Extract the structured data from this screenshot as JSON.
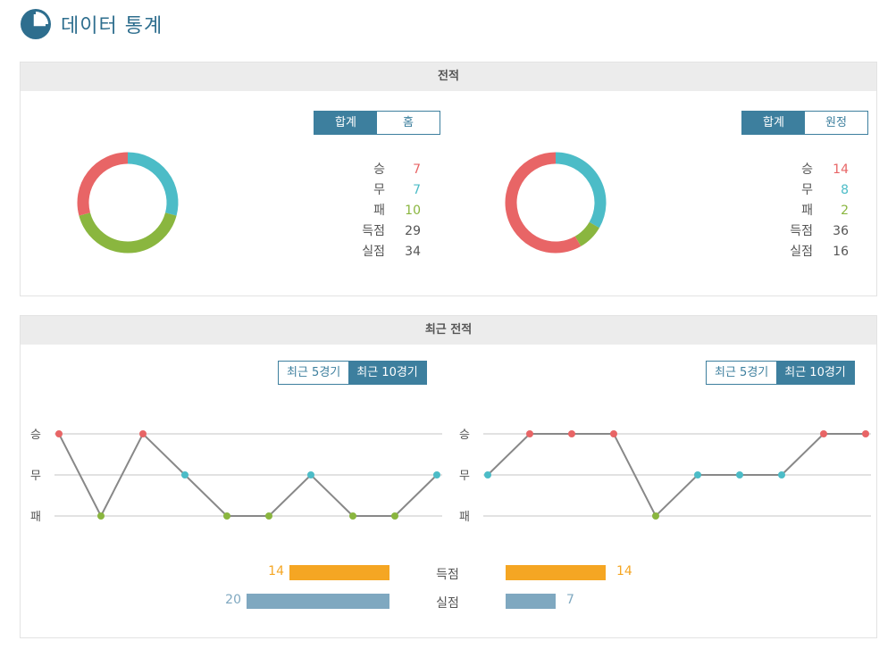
{
  "page": {
    "title": "데이터 통계"
  },
  "colors": {
    "win": "#e86566",
    "draw": "#4cbcc7",
    "loss": "#8ab63f",
    "accent": "#3d7f9e",
    "scored": "#f5a623",
    "conceded": "#7fa8c0"
  },
  "record": {
    "title": "전적",
    "left": {
      "tabs": [
        {
          "label": "합계",
          "active": true
        },
        {
          "label": "홈",
          "active": false
        }
      ],
      "stats": [
        {
          "label": "승",
          "value": "7",
          "color": "#e86566"
        },
        {
          "label": "무",
          "value": "7",
          "color": "#4cbcc7"
        },
        {
          "label": "패",
          "value": "10",
          "color": "#8ab63f"
        },
        {
          "label": "득점",
          "value": "29",
          "color": "#555555"
        },
        {
          "label": "실점",
          "value": "34",
          "color": "#555555"
        }
      ],
      "donut": {
        "win": 7,
        "draw": 7,
        "loss": 10
      }
    },
    "right": {
      "tabs": [
        {
          "label": "합계",
          "active": true
        },
        {
          "label": "원정",
          "active": false
        }
      ],
      "stats": [
        {
          "label": "승",
          "value": "14",
          "color": "#e86566"
        },
        {
          "label": "무",
          "value": "8",
          "color": "#4cbcc7"
        },
        {
          "label": "패",
          "value": "2",
          "color": "#8ab63f"
        },
        {
          "label": "득점",
          "value": "36",
          "color": "#555555"
        },
        {
          "label": "실점",
          "value": "16",
          "color": "#555555"
        }
      ],
      "donut": {
        "win": 14,
        "draw": 8,
        "loss": 2
      }
    }
  },
  "recent": {
    "title": "최근 전적",
    "left": {
      "tabs": [
        {
          "label": "최근 5경기",
          "active": false
        },
        {
          "label": "최근 10경기",
          "active": true
        }
      ],
      "results": [
        "W",
        "L",
        "W",
        "D",
        "L",
        "L",
        "D",
        "L",
        "L",
        "D"
      ]
    },
    "right": {
      "tabs": [
        {
          "label": "최근 5경기",
          "active": false
        },
        {
          "label": "최근 10경기",
          "active": true
        }
      ],
      "results": [
        "D",
        "W",
        "W",
        "W",
        "L",
        "D",
        "D",
        "D",
        "W",
        "W"
      ]
    },
    "y_labels": [
      "승",
      "무",
      "패"
    ],
    "scored": {
      "label": "득점",
      "left": 14,
      "right": 14
    },
    "conceded": {
      "label": "실점",
      "left": 20,
      "right": 7
    }
  }
}
